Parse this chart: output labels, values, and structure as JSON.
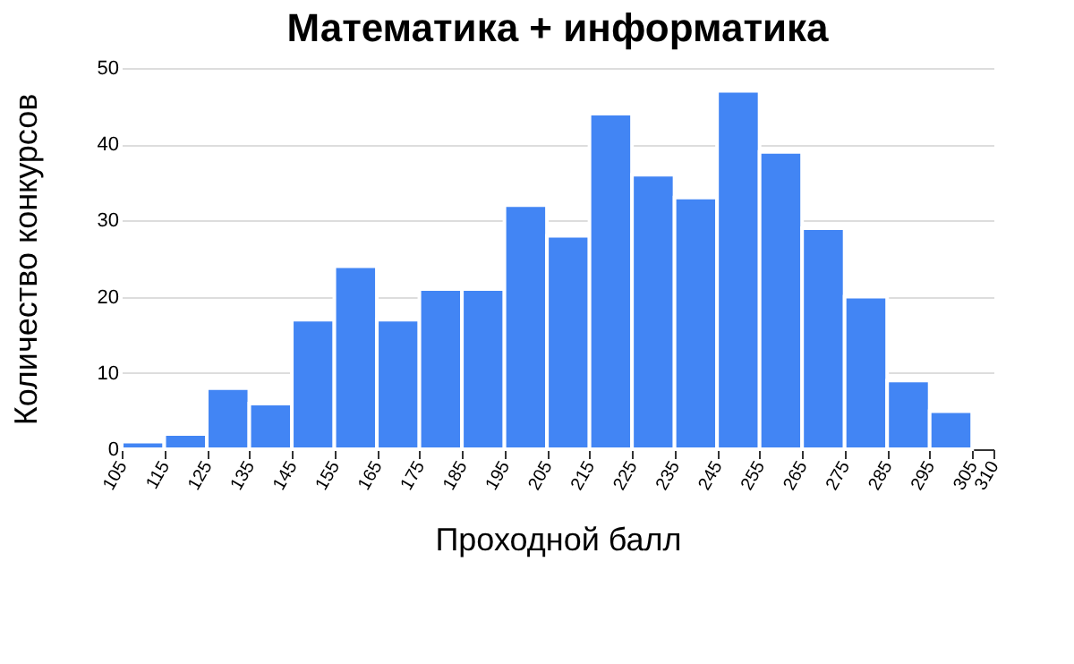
{
  "chart_data": {
    "type": "histogram",
    "title": "Математика + информатика",
    "xlabel": "Проходной балл",
    "ylabel": "Количество конкурсов",
    "bins": [
      105,
      115,
      125,
      135,
      145,
      155,
      165,
      175,
      185,
      195,
      205,
      215,
      225,
      235,
      245,
      255,
      265,
      275,
      285,
      295,
      305
    ],
    "values": [
      1,
      2,
      8,
      6,
      17,
      24,
      17,
      21,
      21,
      32,
      28,
      44,
      36,
      33,
      47,
      39,
      29,
      20,
      9,
      5
    ],
    "color": "#4285f4",
    "xlim": [
      105,
      310
    ],
    "ylim": [
      0,
      50
    ],
    "yticks": [
      0,
      10,
      20,
      30,
      40,
      50
    ],
    "xticks": [
      105,
      115,
      125,
      135,
      145,
      155,
      165,
      175,
      185,
      195,
      205,
      215,
      225,
      235,
      245,
      255,
      265,
      275,
      285,
      295,
      305,
      310
    ],
    "grid": "y"
  }
}
